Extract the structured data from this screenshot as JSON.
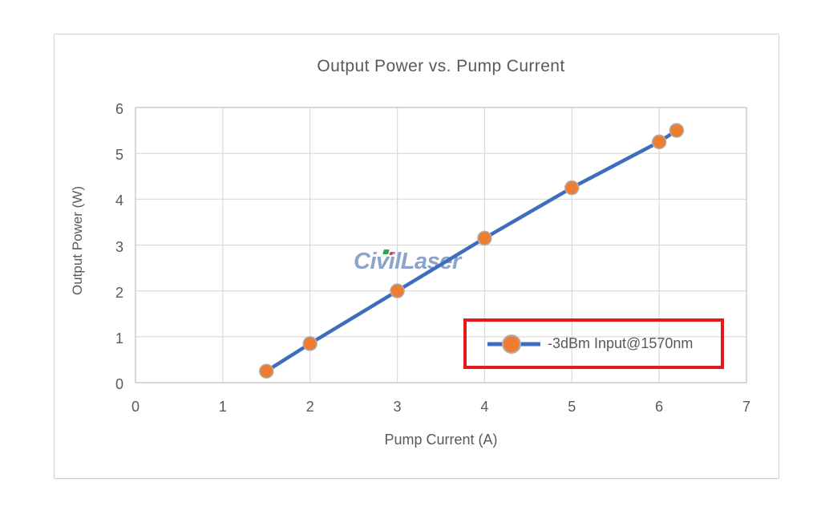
{
  "chart_data": {
    "type": "line",
    "title": "Output Power vs. Pump Current",
    "xlabel": "Pump Current (A)",
    "ylabel": "Output Power (W)",
    "xlim": [
      0,
      7
    ],
    "ylim": [
      0,
      6
    ],
    "xticks": [
      0,
      1,
      2,
      3,
      4,
      5,
      6,
      7
    ],
    "yticks": [
      0,
      1,
      2,
      3,
      4,
      5,
      6
    ],
    "grid": true,
    "legend_position": "inside-bottom-right",
    "series": [
      {
        "name": "-3dBm Input@1570nm",
        "x": [
          1.5,
          2,
          3,
          4,
          5,
          6,
          6.2
        ],
        "y": [
          0.25,
          0.85,
          2.0,
          3.15,
          4.25,
          5.25,
          5.5
        ]
      }
    ]
  },
  "watermark": {
    "text": "CivilLaser"
  },
  "colors": {
    "line": "#3e6dbe",
    "marker": "#ed7d31",
    "marker_outline": "#b3aeab",
    "grid": "#d9d9d9",
    "plot_border": "#c8c8c8",
    "axis_text": "#595959",
    "title_text": "#595959",
    "legend_highlight": "#e31a1a",
    "watermark": "#8ca3ca",
    "watermark_accent_green": "#2fa84f",
    "watermark_accent_red": "#e0433d",
    "panel_border": "#d2d2d2"
  }
}
